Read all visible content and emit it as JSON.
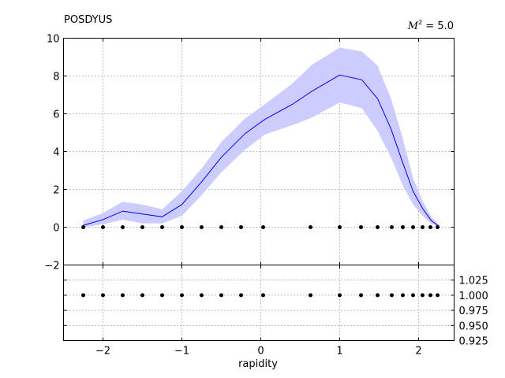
{
  "chart_data": [
    {
      "type": "line",
      "title": "POSDYUS",
      "annotation": "M² = 5.0",
      "annotation_symbol": "M",
      "annotation_sup": "2",
      "annotation_value": " = 5.0",
      "xlabel": "",
      "ylabel": "",
      "xlim": [
        -2.5,
        2.45
      ],
      "ylim": [
        -2,
        10
      ],
      "yticks": [
        -2,
        0,
        2,
        4,
        6,
        8,
        10
      ],
      "xticks": [
        -2,
        -1,
        0,
        1,
        2
      ],
      "grid": true,
      "colors": {
        "line": "#0000ff",
        "band": "#ccccff",
        "points": "#000000"
      },
      "series": [
        {
          "kind": "line",
          "x": [
            -2.25,
            -2.0,
            -1.75,
            -1.5,
            -1.25,
            -1.0,
            -0.75,
            -0.5,
            -0.2,
            0.05,
            0.4,
            0.65,
            1.0,
            1.28,
            1.48,
            1.65,
            1.8,
            1.93,
            2.05,
            2.16,
            2.26
          ],
          "y": [
            0.1,
            0.4,
            0.85,
            0.7,
            0.55,
            1.2,
            2.4,
            3.7,
            4.95,
            5.7,
            6.5,
            7.2,
            8.05,
            7.8,
            6.8,
            5.2,
            3.4,
            1.9,
            1.0,
            0.35,
            0.05
          ]
        },
        {
          "kind": "band",
          "x": [
            -2.25,
            -2.0,
            -1.75,
            -1.5,
            -1.25,
            -1.0,
            -0.75,
            -0.5,
            -0.2,
            0.05,
            0.4,
            0.65,
            1.0,
            1.28,
            1.48,
            1.65,
            1.8,
            1.93,
            2.05,
            2.16,
            2.26
          ],
          "y_low": [
            0.0,
            0.15,
            0.4,
            0.2,
            0.2,
            0.6,
            1.7,
            2.9,
            4.1,
            4.9,
            5.4,
            5.8,
            6.6,
            6.3,
            5.1,
            3.7,
            2.2,
            1.2,
            0.6,
            0.2,
            0.0
          ],
          "y_high": [
            0.35,
            0.75,
            1.35,
            1.2,
            0.95,
            1.9,
            3.1,
            4.5,
            5.75,
            6.5,
            7.6,
            8.6,
            9.5,
            9.3,
            8.55,
            6.8,
            4.7,
            2.6,
            1.4,
            0.55,
            0.12
          ]
        },
        {
          "kind": "scatter",
          "x": [
            -2.25,
            -2.0,
            -1.75,
            -1.5,
            -1.25,
            -1.0,
            -0.75,
            -0.5,
            -0.25,
            0.03,
            0.63,
            1.0,
            1.27,
            1.48,
            1.66,
            1.8,
            1.93,
            2.05,
            2.15,
            2.24
          ],
          "y": [
            0,
            0,
            0,
            0,
            0,
            0,
            0,
            0,
            0,
            0,
            0,
            0,
            0,
            0,
            0,
            0,
            0,
            0,
            0,
            0
          ]
        }
      ]
    },
    {
      "type": "scatter",
      "title": "",
      "xlabel": "rapidity",
      "ylabel": "",
      "xlim": [
        -2.5,
        2.45
      ],
      "ylim": [
        0.925,
        1.05
      ],
      "xticks": [
        -2,
        -1,
        0,
        1,
        2
      ],
      "xtick_labels": [
        "−2",
        "−1",
        "0",
        "1",
        "2"
      ],
      "yticks": [
        0.925,
        0.95,
        0.975,
        1.0,
        1.025
      ],
      "ytick_labels": [
        "0.925",
        "0.950",
        "0.975",
        "1.000",
        "1.025"
      ],
      "grid": true,
      "series": [
        {
          "kind": "scatter",
          "x": [
            -2.25,
            -2.0,
            -1.75,
            -1.5,
            -1.25,
            -1.0,
            -0.75,
            -0.5,
            -0.25,
            0.03,
            0.63,
            1.0,
            1.27,
            1.48,
            1.66,
            1.8,
            1.93,
            2.05,
            2.15,
            2.24
          ],
          "y": [
            1.0,
            1.0,
            1.0,
            1.0,
            1.0,
            1.0,
            1.0,
            1.0,
            1.0,
            1.0,
            1.0,
            1.0,
            1.0,
            1.0,
            1.0,
            1.0,
            1.0,
            1.0,
            1.0,
            1.0
          ]
        }
      ]
    }
  ]
}
